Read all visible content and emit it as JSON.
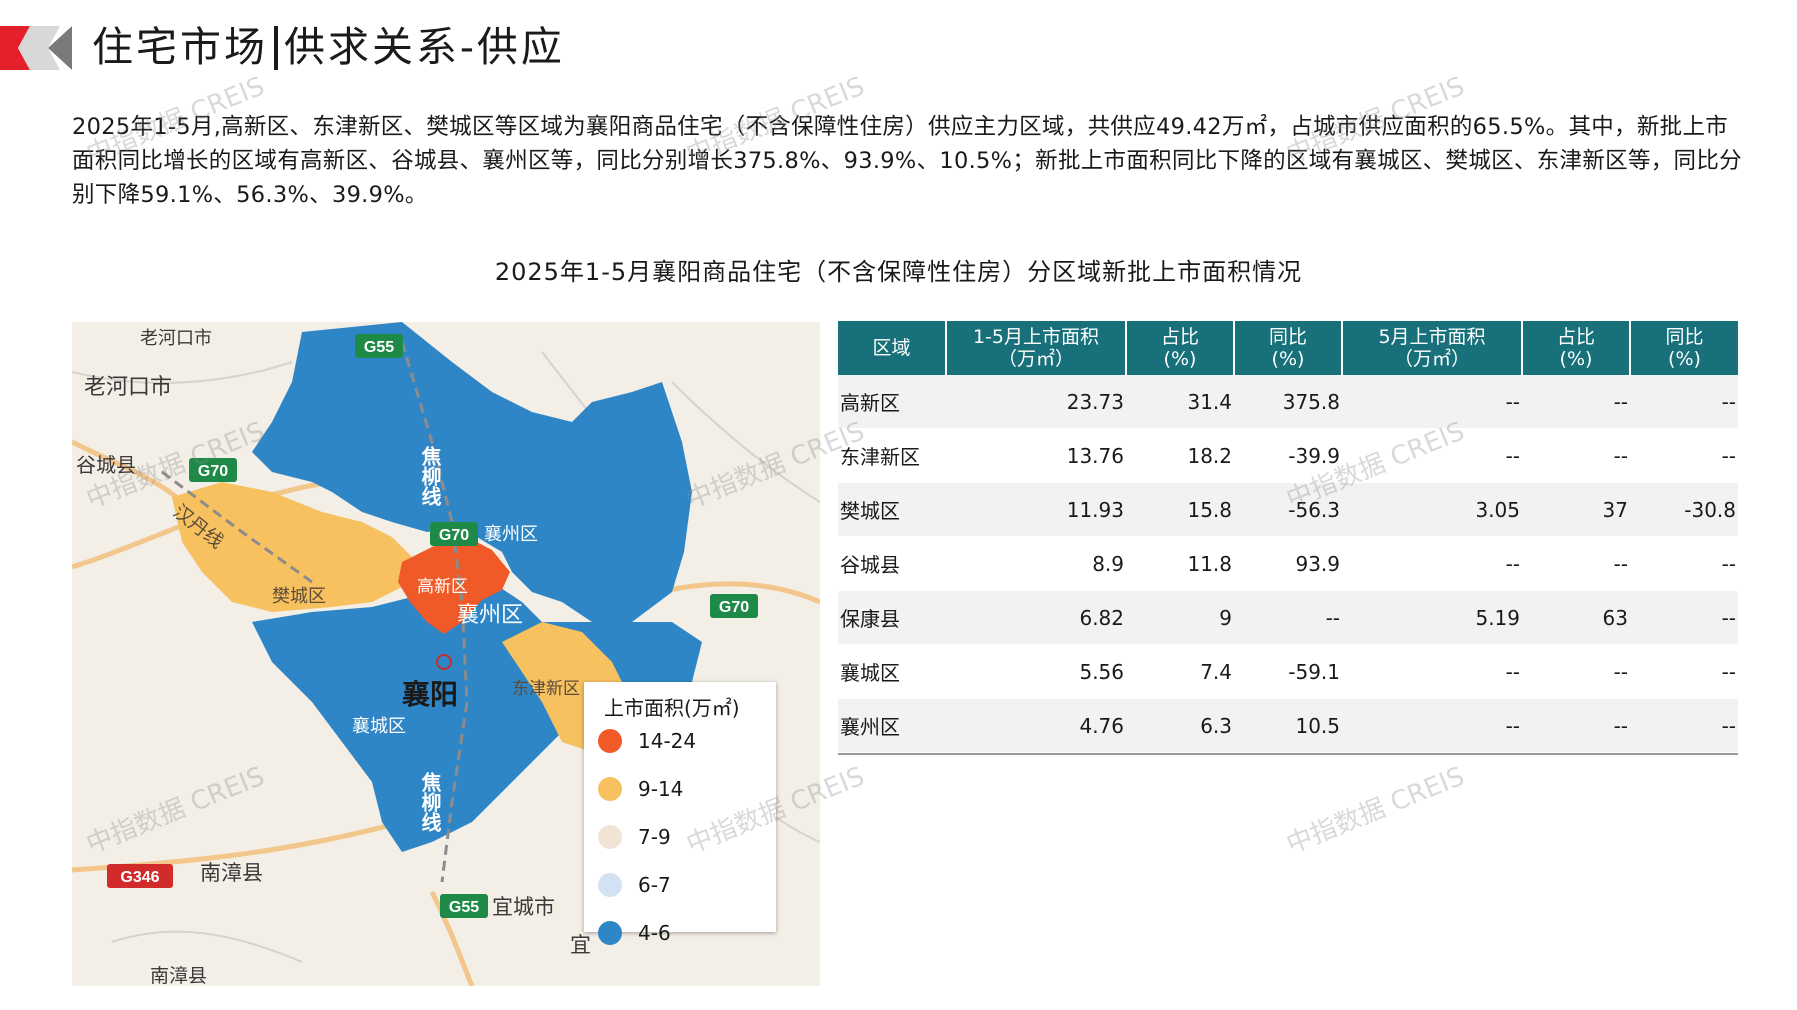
{
  "header": {
    "title_part1": "住宅市场",
    "title_part2": "供求关系-供应"
  },
  "summary": "2025年1-5月,高新区、东津新区、樊城区等区域为襄阳商品住宅（不含保障性住房）供应主力区域，共供应49.42万㎡，占城市供应面积的65.5%。其中，新批上市面积同比增长的区域有高新区、谷城县、襄州区等，同比分别增长375.8%、93.9%、10.5%；新批上市面积同比下降的区域有襄城区、樊城区、东津新区等，同比分别下降59.1%、56.3%、39.9%。",
  "chart_title": "2025年1-5月襄阳商品住宅（不含保障性住房）分区域新批上市面积情况",
  "map": {
    "labels": {
      "laohekou_city": "老河口市",
      "laohekou_top": "老河口市",
      "gucheng_county": "谷城县",
      "hanshi_line": "汉丹线",
      "jiaoliu_line_top": "焦柳线",
      "jiaoliu_line_bottom": "焦柳线",
      "xiangcheng": "襄城区",
      "fancheng": "樊城区",
      "gaoxin": "高新区",
      "xiangzhou": "襄州区",
      "xiangzhou_top": "襄州区",
      "xiangyang": "襄阳",
      "dongjin": "东津新区",
      "nanzhang": "南漳县",
      "nanzhang_bottom": "南漳县",
      "yicheng": "宜城市",
      "yi": "宜"
    },
    "highways": {
      "g55_top": "G55",
      "g70_left": "G70",
      "g70_mid": "G70",
      "g70_right": "G70",
      "g346": "G346",
      "g55_bottom": "G55"
    },
    "legend": {
      "title": "上市面积(万㎡)",
      "items": [
        {
          "label": "14-24",
          "color": "#f05a28"
        },
        {
          "label": "9-14",
          "color": "#f7c15f"
        },
        {
          "label": "7-9",
          "color": "#f1e4d4"
        },
        {
          "label": "6-7",
          "color": "#d3e2f2"
        },
        {
          "label": "4-6",
          "color": "#2f86c6"
        }
      ]
    }
  },
  "table": {
    "headers": [
      "区域",
      "1-5月上市面积\n（万㎡）",
      "占比\n(%)",
      "同比\n(%)",
      "5月上市面积\n（万㎡）",
      "占比\n(%)",
      "同比\n(%)"
    ],
    "rows": [
      [
        "高新区",
        "23.73",
        "31.4",
        "375.8",
        "--",
        "--",
        "--"
      ],
      [
        "东津新区",
        "13.76",
        "18.2",
        "-39.9",
        "--",
        "--",
        "--"
      ],
      [
        "樊城区",
        "11.93",
        "15.8",
        "-56.3",
        "3.05",
        "37",
        "-30.8"
      ],
      [
        "谷城县",
        "8.9",
        "11.8",
        "93.9",
        "--",
        "--",
        "--"
      ],
      [
        "保康县",
        "6.82",
        "9",
        "--",
        "5.19",
        "63",
        "--"
      ],
      [
        "襄城区",
        "5.56",
        "7.4",
        "-59.1",
        "--",
        "--",
        "--"
      ],
      [
        "襄州区",
        "4.76",
        "6.3",
        "10.5",
        "--",
        "--",
        "--"
      ]
    ]
  },
  "watermark": "中指数据 CREIS",
  "colors": {
    "header_accent_red": "#e3202b",
    "table_header": "#17707a",
    "region_blue": "#2f86c6",
    "region_orange": "#f7c15f",
    "region_red": "#f05a28"
  }
}
